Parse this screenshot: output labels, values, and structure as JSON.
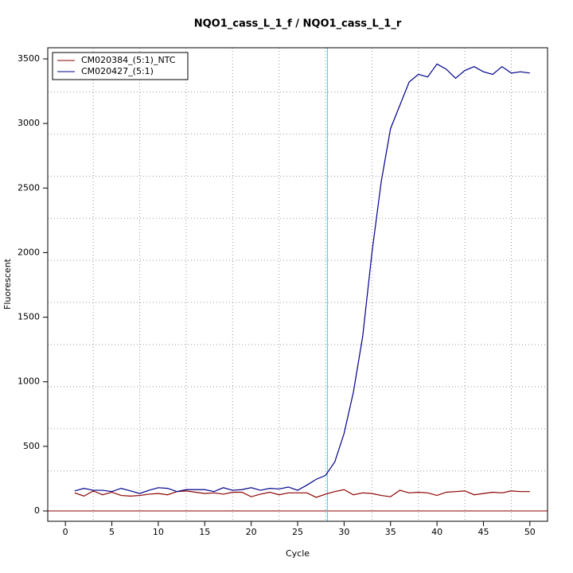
{
  "chart_data": {
    "type": "line",
    "title": "NQO1_cass_L_1_f / NQO1_cass_L_1_r",
    "x_label": "Cycle",
    "y_label": "Fluorescent",
    "x": [
      1,
      2,
      3,
      4,
      5,
      6,
      7,
      8,
      9,
      10,
      11,
      12,
      13,
      14,
      15,
      16,
      17,
      18,
      19,
      20,
      21,
      22,
      23,
      24,
      25,
      26,
      27,
      28,
      29,
      30,
      31,
      32,
      33,
      34,
      35,
      36,
      37,
      38,
      39,
      40,
      41,
      42,
      43,
      44,
      45,
      46,
      47,
      48,
      49,
      50
    ],
    "series": [
      {
        "name": "CM020384_(5:1)_NTC",
        "color": "#8b0000",
        "values": [
          140,
          115,
          155,
          125,
          145,
          120,
          115,
          120,
          130,
          135,
          125,
          150,
          155,
          145,
          135,
          140,
          130,
          145,
          145,
          110,
          130,
          145,
          125,
          140,
          140,
          140,
          105,
          130,
          150,
          165,
          125,
          140,
          135,
          120,
          110,
          160,
          140,
          145,
          140,
          120,
          145,
          150,
          155,
          125,
          135,
          145,
          140,
          155,
          150,
          150
        ]
      },
      {
        "name": "CM020427_(5:1)",
        "color": "#00008b",
        "values": [
          155,
          175,
          160,
          160,
          150,
          175,
          155,
          135,
          160,
          180,
          175,
          150,
          165,
          165,
          165,
          150,
          180,
          160,
          165,
          180,
          160,
          175,
          170,
          185,
          160,
          200,
          245,
          275,
          380,
          600,
          920,
          1350,
          2000,
          2550,
          2960,
          3140,
          3320,
          3380,
          3360,
          3460,
          3420,
          3350,
          3410,
          3440,
          3400,
          3380,
          3440,
          3390,
          3400,
          3390
        ]
      }
    ],
    "xlim": [
      -1.9,
      51.9
    ],
    "ylim": [
      -80,
      3586
    ],
    "xticks": [
      0,
      5,
      10,
      15,
      20,
      25,
      30,
      35,
      40,
      45,
      50
    ],
    "yticks": [
      0,
      500,
      1000,
      1500,
      2000,
      2500,
      3000,
      3500
    ],
    "grid": true,
    "xgrid": [
      3,
      8,
      13,
      18,
      23,
      28,
      33,
      38,
      43,
      48
    ],
    "ygrid": [
      310,
      636,
      962,
      1288,
      1614,
      1940,
      2266,
      2592,
      2918,
      3244
    ],
    "threshold_cycle": 28.2,
    "threshold_color": "#00e5ee",
    "baseline": 0,
    "baseline_color": "#8b0000",
    "legend": "top-left"
  }
}
